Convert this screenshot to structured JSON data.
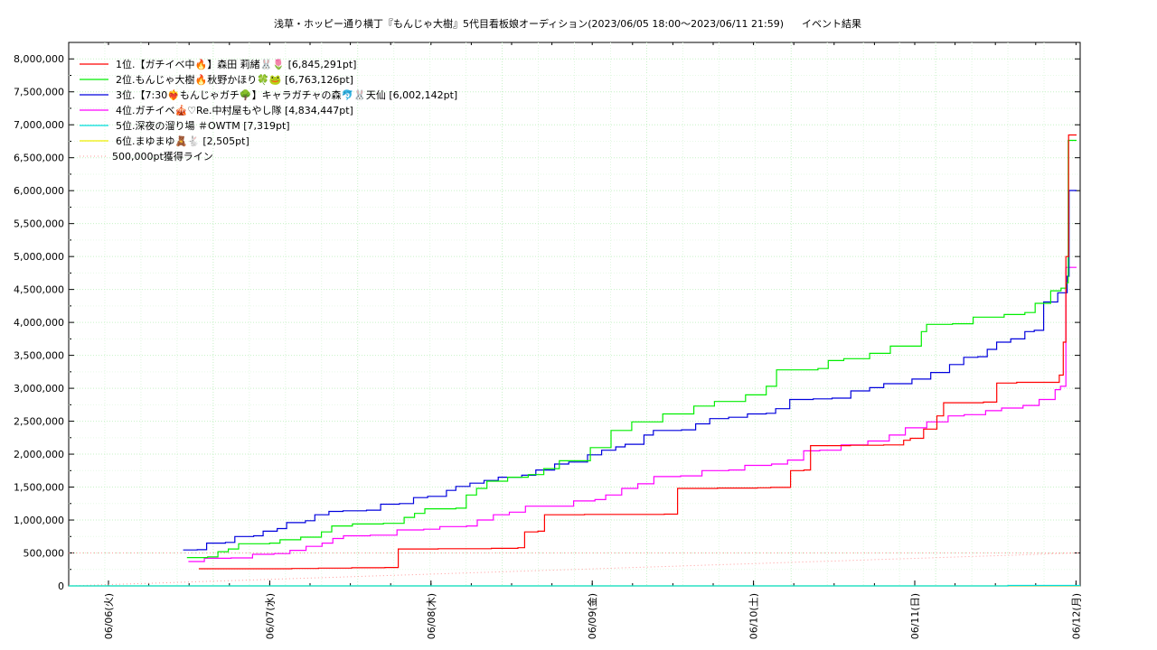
{
  "chart_data": {
    "type": "line",
    "title_left": "浅草・ホッピー通り横丁『もんじゃ大樹』5代目看板娘オーディション(2023/06/05 18:00〜2023/06/11 21:59)",
    "title_right": "イベント結果",
    "xlabel": "",
    "ylabel": "",
    "x_ticks": [
      "06/06(火)",
      "06/07(水)",
      "06/08(木)",
      "06/09(金)",
      "06/10(土)",
      "06/11(日)",
      "06/12(月)"
    ],
    "x_range": [
      "06/05 23:30",
      "06/12 00:00"
    ],
    "ylim": [
      0,
      8250000
    ],
    "y_ticks": [
      "0",
      "500,000",
      "1,000,000",
      "1,500,000",
      "2,000,000",
      "2,500,000",
      "3,000,000",
      "3,500,000",
      "4,000,000",
      "4,500,000",
      "5,000,000",
      "5,500,000",
      "6,000,000",
      "6,500,000",
      "7,000,000",
      "7,500,000",
      "8,000,000"
    ],
    "grid": true,
    "legend_position": "top-left",
    "series": [
      {
        "name": "1位.【ガチイベ中🔥】森田 莉緒🐰🌷 [6,845,291pt]",
        "color": "#ff0000",
        "points": [
          [
            0.4,
            260000
          ],
          [
            0.9,
            260000
          ],
          [
            1.1,
            265000
          ],
          [
            1.3,
            270000
          ],
          [
            1.55,
            275000
          ],
          [
            1.8,
            280000
          ],
          [
            1.9,
            560000
          ],
          [
            2.2,
            565000
          ],
          [
            2.6,
            570000
          ],
          [
            2.8,
            580000
          ],
          [
            2.85,
            820000
          ],
          [
            2.95,
            830000
          ],
          [
            3.0,
            1080000
          ],
          [
            3.3,
            1085000
          ],
          [
            3.6,
            1085000
          ],
          [
            3.9,
            1090000
          ],
          [
            4.0,
            1480000
          ],
          [
            4.3,
            1485000
          ],
          [
            4.6,
            1490000
          ],
          [
            4.7,
            1495000
          ],
          [
            4.85,
            1750000
          ],
          [
            4.95,
            1760000
          ],
          [
            5.0,
            2130000
          ],
          [
            5.3,
            2135000
          ],
          [
            5.55,
            2140000
          ],
          [
            5.7,
            2210000
          ],
          [
            5.75,
            2240000
          ],
          [
            5.85,
            2380000
          ],
          [
            5.95,
            2580000
          ],
          [
            6.0,
            2780000
          ],
          [
            6.3,
            2790000
          ],
          [
            6.4,
            3080000
          ],
          [
            6.55,
            3090000
          ],
          [
            6.8,
            3090000
          ],
          [
            6.87,
            3200000
          ],
          [
            6.9,
            3700000
          ],
          [
            6.92,
            5000000
          ],
          [
            6.94,
            6845291
          ],
          [
            7.0,
            6845291
          ]
        ]
      },
      {
        "name": "2位.もんじゃ大樹🔥秋野かほり🍀🐸 [6,763,126pt]",
        "color": "#00ee00",
        "points": [
          [
            0.4,
            430000
          ],
          [
            0.6,
            440000
          ],
          [
            0.7,
            520000
          ],
          [
            0.8,
            560000
          ],
          [
            0.9,
            640000
          ],
          [
            1.2,
            650000
          ],
          [
            1.3,
            700000
          ],
          [
            1.5,
            740000
          ],
          [
            1.7,
            820000
          ],
          [
            1.8,
            910000
          ],
          [
            2.0,
            940000
          ],
          [
            2.3,
            950000
          ],
          [
            2.5,
            1040000
          ],
          [
            2.6,
            1100000
          ],
          [
            2.7,
            1170000
          ],
          [
            3.0,
            1180000
          ],
          [
            3.1,
            1380000
          ],
          [
            3.2,
            1480000
          ],
          [
            3.3,
            1590000
          ],
          [
            3.5,
            1650000
          ],
          [
            3.7,
            1690000
          ],
          [
            3.85,
            1780000
          ],
          [
            4.0,
            1900000
          ],
          [
            4.3,
            2100000
          ],
          [
            4.5,
            2360000
          ],
          [
            4.7,
            2490000
          ],
          [
            5.0,
            2610000
          ],
          [
            5.3,
            2730000
          ],
          [
            5.5,
            2800000
          ],
          [
            5.8,
            2900000
          ],
          [
            6.0,
            3030000
          ],
          [
            6.1,
            3280000
          ],
          [
            6.5,
            3300000
          ],
          [
            6.6,
            3420000
          ],
          [
            6.75,
            3450000
          ],
          [
            7.0,
            3530000
          ],
          [
            7.2,
            3640000
          ],
          [
            7.5,
            3860000
          ],
          [
            7.55,
            3970000
          ],
          [
            7.8,
            3980000
          ],
          [
            8.0,
            4080000
          ],
          [
            8.3,
            4120000
          ],
          [
            8.5,
            4150000
          ],
          [
            8.6,
            4290000
          ],
          [
            8.75,
            4480000
          ],
          [
            8.85,
            4520000
          ],
          [
            8.9,
            4600000
          ],
          [
            8.92,
            6763126
          ],
          [
            9.0,
            6763126
          ]
        ]
      },
      {
        "name": "3位.【7:30❤️‍🔥もんじゃガチ🌳】キャラガチャの森🐬🐰天仙 [6,002,142pt]",
        "color": "#0000dd",
        "points": [
          [
            0.4,
            545000
          ],
          [
            0.55,
            550000
          ],
          [
            0.65,
            650000
          ],
          [
            0.85,
            660000
          ],
          [
            0.95,
            750000
          ],
          [
            1.15,
            760000
          ],
          [
            1.25,
            830000
          ],
          [
            1.4,
            870000
          ],
          [
            1.5,
            960000
          ],
          [
            1.7,
            990000
          ],
          [
            1.8,
            1080000
          ],
          [
            1.95,
            1130000
          ],
          [
            2.1,
            1140000
          ],
          [
            2.35,
            1150000
          ],
          [
            2.5,
            1240000
          ],
          [
            2.7,
            1250000
          ],
          [
            2.85,
            1340000
          ],
          [
            3.0,
            1360000
          ],
          [
            3.2,
            1450000
          ],
          [
            3.3,
            1510000
          ],
          [
            3.45,
            1560000
          ],
          [
            3.6,
            1600000
          ],
          [
            3.75,
            1650000
          ],
          [
            4.0,
            1680000
          ],
          [
            4.15,
            1760000
          ],
          [
            4.35,
            1850000
          ],
          [
            4.5,
            1880000
          ],
          [
            4.7,
            1990000
          ],
          [
            4.85,
            2060000
          ],
          [
            5.0,
            2110000
          ],
          [
            5.1,
            2150000
          ],
          [
            5.3,
            2290000
          ],
          [
            5.4,
            2360000
          ],
          [
            5.7,
            2370000
          ],
          [
            5.85,
            2460000
          ],
          [
            6.0,
            2540000
          ],
          [
            6.2,
            2560000
          ],
          [
            6.4,
            2610000
          ],
          [
            6.6,
            2620000
          ],
          [
            6.7,
            2690000
          ],
          [
            6.85,
            2830000
          ],
          [
            7.1,
            2840000
          ],
          [
            7.3,
            2850000
          ],
          [
            7.5,
            2960000
          ],
          [
            7.7,
            3010000
          ],
          [
            7.85,
            3070000
          ],
          [
            8.0,
            3070000
          ],
          [
            8.15,
            3140000
          ],
          [
            8.35,
            3240000
          ],
          [
            8.55,
            3360000
          ],
          [
            8.7,
            3470000
          ],
          [
            8.85,
            3480000
          ],
          [
            8.95,
            3590000
          ],
          [
            9.05,
            3700000
          ],
          [
            9.2,
            3750000
          ],
          [
            9.35,
            3860000
          ],
          [
            9.45,
            3880000
          ],
          [
            9.55,
            4310000
          ],
          [
            9.7,
            4450000
          ],
          [
            9.8,
            4700000
          ],
          [
            9.82,
            6002142
          ],
          [
            9.9,
            6002142
          ]
        ]
      },
      {
        "name": "4位.ガチイベ🎪♡Re.中村屋もやし隊 [4,834,447pt]",
        "color": "#ff00ff",
        "points": [
          [
            0.4,
            370000
          ],
          [
            0.55,
            420000
          ],
          [
            0.8,
            425000
          ],
          [
            1.0,
            480000
          ],
          [
            1.2,
            490000
          ],
          [
            1.35,
            540000
          ],
          [
            1.5,
            600000
          ],
          [
            1.65,
            650000
          ],
          [
            1.75,
            720000
          ],
          [
            1.85,
            760000
          ],
          [
            2.1,
            770000
          ],
          [
            2.35,
            850000
          ],
          [
            2.6,
            860000
          ],
          [
            2.75,
            900000
          ],
          [
            3.0,
            910000
          ],
          [
            3.1,
            1000000
          ],
          [
            3.25,
            1080000
          ],
          [
            3.4,
            1120000
          ],
          [
            3.55,
            1210000
          ],
          [
            3.8,
            1210000
          ],
          [
            4.0,
            1290000
          ],
          [
            4.2,
            1310000
          ],
          [
            4.3,
            1380000
          ],
          [
            4.45,
            1480000
          ],
          [
            4.6,
            1550000
          ],
          [
            4.75,
            1660000
          ],
          [
            5.0,
            1670000
          ],
          [
            5.2,
            1750000
          ],
          [
            5.45,
            1760000
          ],
          [
            5.6,
            1830000
          ],
          [
            5.85,
            1850000
          ],
          [
            6.0,
            1910000
          ],
          [
            6.15,
            2050000
          ],
          [
            6.3,
            2060000
          ],
          [
            6.5,
            2140000
          ],
          [
            6.75,
            2200000
          ],
          [
            6.95,
            2290000
          ],
          [
            7.1,
            2400000
          ],
          [
            7.3,
            2490000
          ],
          [
            7.5,
            2580000
          ],
          [
            7.65,
            2600000
          ],
          [
            7.85,
            2660000
          ],
          [
            8.0,
            2700000
          ],
          [
            8.2,
            2740000
          ],
          [
            8.35,
            2830000
          ],
          [
            8.5,
            2980000
          ],
          [
            8.55,
            3030000
          ],
          [
            8.6,
            4834447
          ],
          [
            8.7,
            4834447
          ]
        ]
      },
      {
        "name": "5位.深夜の溜り場 ＃OWTM [7,319pt]",
        "color": "#00dddd",
        "points": [
          [
            0.0,
            0
          ],
          [
            0.5,
            0
          ],
          [
            1.0,
            0
          ],
          [
            3.0,
            0
          ],
          [
            5.0,
            0
          ],
          [
            6.5,
            7319
          ],
          [
            7.0,
            7319
          ]
        ]
      },
      {
        "name": "6位.まゆまゆ🧸🐇 [2,505pt]",
        "color": "#eeee00",
        "points": [
          [
            0.0,
            0
          ],
          [
            2.0,
            0
          ],
          [
            5.0,
            0
          ],
          [
            6.5,
            2505
          ],
          [
            7.0,
            2505
          ]
        ]
      }
    ],
    "reference_line": {
      "name": "500,000pt獲得ライン",
      "color": "#ff9999",
      "value": 500000
    }
  }
}
